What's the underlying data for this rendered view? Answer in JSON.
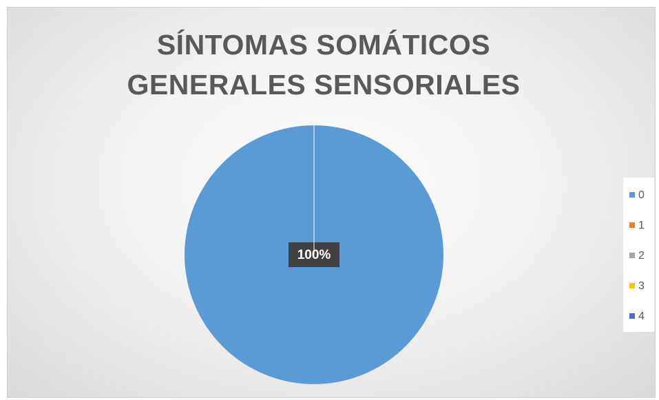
{
  "chart_data": {
    "type": "pie",
    "title": "SÍNTOMAS SOMÁTICOS GENERALES SENSORIALES",
    "categories": [
      "0",
      "1",
      "2",
      "3",
      "4"
    ],
    "values": [
      100,
      0,
      0,
      0,
      0
    ],
    "value_labels": [
      "100%",
      null,
      null,
      null,
      null
    ],
    "colors": [
      "#5b9bd5",
      "#ed7d31",
      "#a5a5a5",
      "#ffc000",
      "#4472c4"
    ],
    "legend": "right"
  }
}
